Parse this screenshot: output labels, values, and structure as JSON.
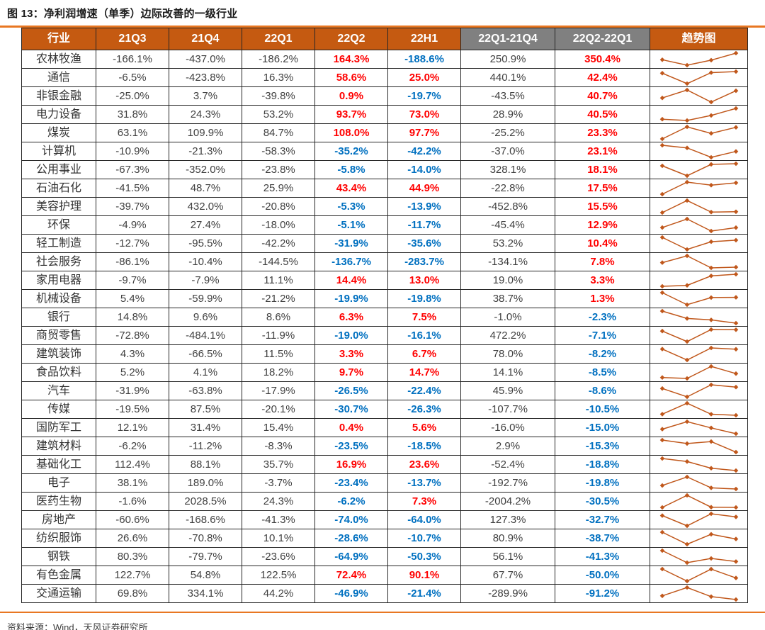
{
  "figure": {
    "title": "图 13：净利润增速（单季）边际改善的一级行业",
    "source": "资料来源：Wind，天风证券研究所"
  },
  "colors": {
    "header_orange": "#C55A11",
    "header_gray": "#808080",
    "positive_value": "#FF0000",
    "negative_value": "#0070C0",
    "body_text": "#404040",
    "sparkline": "#C0571B",
    "rule_orange": "#E87722"
  },
  "chart_data": {
    "type": "table",
    "title": "图 13：净利润增速（单季）边际改善的一级行业",
    "unit": "%",
    "columns": [
      "行业",
      "21Q3",
      "21Q4",
      "22Q1",
      "22Q2",
      "22H1",
      "22Q1-21Q4",
      "22Q2-22Q1",
      "趋势图"
    ],
    "gray_header_columns": [
      "22Q1-21Q4",
      "22Q2-22Q1"
    ],
    "highlight_columns": [
      "22Q2",
      "22H1",
      "22Q2-22Q1"
    ],
    "sparkline": {
      "type": "line",
      "x": [
        "21Q3",
        "21Q4",
        "22Q1",
        "22Q2"
      ],
      "marker": "diamond"
    },
    "rows": [
      {
        "industry": "农林牧渔",
        "values": [
          -166.1,
          -437.0,
          -186.2,
          164.3,
          -188.6,
          250.9,
          350.4
        ]
      },
      {
        "industry": "通信",
        "values": [
          -6.5,
          -423.8,
          16.3,
          58.6,
          25.0,
          440.1,
          42.4
        ]
      },
      {
        "industry": "非银金融",
        "values": [
          -25.0,
          3.7,
          -39.8,
          0.9,
          -19.7,
          -43.5,
          40.7
        ]
      },
      {
        "industry": "电力设备",
        "values": [
          31.8,
          24.3,
          53.2,
          93.7,
          73.0,
          28.9,
          40.5
        ]
      },
      {
        "industry": "煤炭",
        "values": [
          63.1,
          109.9,
          84.7,
          108.0,
          97.7,
          -25.2,
          23.3
        ]
      },
      {
        "industry": "计算机",
        "values": [
          -10.9,
          -21.3,
          -58.3,
          -35.2,
          -42.2,
          -37.0,
          23.1
        ]
      },
      {
        "industry": "公用事业",
        "values": [
          -67.3,
          -352.0,
          -23.8,
          -5.8,
          -14.0,
          328.1,
          18.1
        ]
      },
      {
        "industry": "石油石化",
        "values": [
          -41.5,
          48.7,
          25.9,
          43.4,
          44.9,
          -22.8,
          17.5
        ]
      },
      {
        "industry": "美容护理",
        "values": [
          -39.7,
          432.0,
          -20.8,
          -5.3,
          -13.9,
          -452.8,
          15.5
        ]
      },
      {
        "industry": "环保",
        "values": [
          -4.9,
          27.4,
          -18.0,
          -5.1,
          -11.7,
          -45.4,
          12.9
        ]
      },
      {
        "industry": "轻工制造",
        "values": [
          -12.7,
          -95.5,
          -42.2,
          -31.9,
          -35.6,
          53.2,
          10.4
        ]
      },
      {
        "industry": "社会服务",
        "values": [
          -86.1,
          -10.4,
          -144.5,
          -136.7,
          -283.7,
          -134.1,
          7.8
        ]
      },
      {
        "industry": "家用电器",
        "values": [
          -9.7,
          -7.9,
          11.1,
          14.4,
          13.0,
          19.0,
          3.3
        ]
      },
      {
        "industry": "机械设备",
        "values": [
          5.4,
          -59.9,
          -21.2,
          -19.9,
          -19.8,
          38.7,
          1.3
        ]
      },
      {
        "industry": "银行",
        "values": [
          14.8,
          9.6,
          8.6,
          6.3,
          7.5,
          -1.0,
          -2.3
        ]
      },
      {
        "industry": "商贸零售",
        "values": [
          -72.8,
          -484.1,
          -11.9,
          -19.0,
          -16.1,
          472.2,
          -7.1
        ]
      },
      {
        "industry": "建筑装饰",
        "values": [
          4.3,
          -66.5,
          11.5,
          3.3,
          6.7,
          78.0,
          -8.2
        ]
      },
      {
        "industry": "食品饮料",
        "values": [
          5.2,
          4.1,
          18.2,
          9.7,
          14.7,
          14.1,
          -8.5
        ]
      },
      {
        "industry": "汽车",
        "values": [
          -31.9,
          -63.8,
          -17.9,
          -26.5,
          -22.4,
          45.9,
          -8.6
        ]
      },
      {
        "industry": "传媒",
        "values": [
          -19.5,
          87.5,
          -20.1,
          -30.7,
          -26.3,
          -107.7,
          -10.5
        ]
      },
      {
        "industry": "国防军工",
        "values": [
          12.1,
          31.4,
          15.4,
          0.4,
          5.6,
          -16.0,
          -15.0
        ]
      },
      {
        "industry": "建筑材料",
        "values": [
          -6.2,
          -11.2,
          -8.3,
          -23.5,
          -18.5,
          2.9,
          -15.3
        ]
      },
      {
        "industry": "基础化工",
        "values": [
          112.4,
          88.1,
          35.7,
          16.9,
          23.6,
          -52.4,
          -18.8
        ]
      },
      {
        "industry": "电子",
        "values": [
          38.1,
          189.0,
          -3.7,
          -23.4,
          -13.7,
          -192.7,
          -19.8
        ]
      },
      {
        "industry": "医药生物",
        "values": [
          -1.6,
          2028.5,
          24.3,
          -6.2,
          7.3,
          -2004.2,
          -30.5
        ]
      },
      {
        "industry": "房地产",
        "values": [
          -60.6,
          -168.6,
          -41.3,
          -74.0,
          -64.0,
          127.3,
          -32.7
        ]
      },
      {
        "industry": "纺织服饰",
        "values": [
          26.6,
          -70.8,
          10.1,
          -28.6,
          -10.7,
          80.9,
          -38.7
        ]
      },
      {
        "industry": "钢铁",
        "values": [
          80.3,
          -79.7,
          -23.6,
          -64.9,
          -50.3,
          56.1,
          -41.3
        ]
      },
      {
        "industry": "有色金属",
        "values": [
          122.7,
          54.8,
          122.5,
          72.4,
          90.1,
          67.7,
          -50.0
        ]
      },
      {
        "industry": "交通运输",
        "values": [
          69.8,
          334.1,
          44.2,
          -46.9,
          -21.4,
          -289.9,
          -91.2
        ]
      }
    ]
  }
}
